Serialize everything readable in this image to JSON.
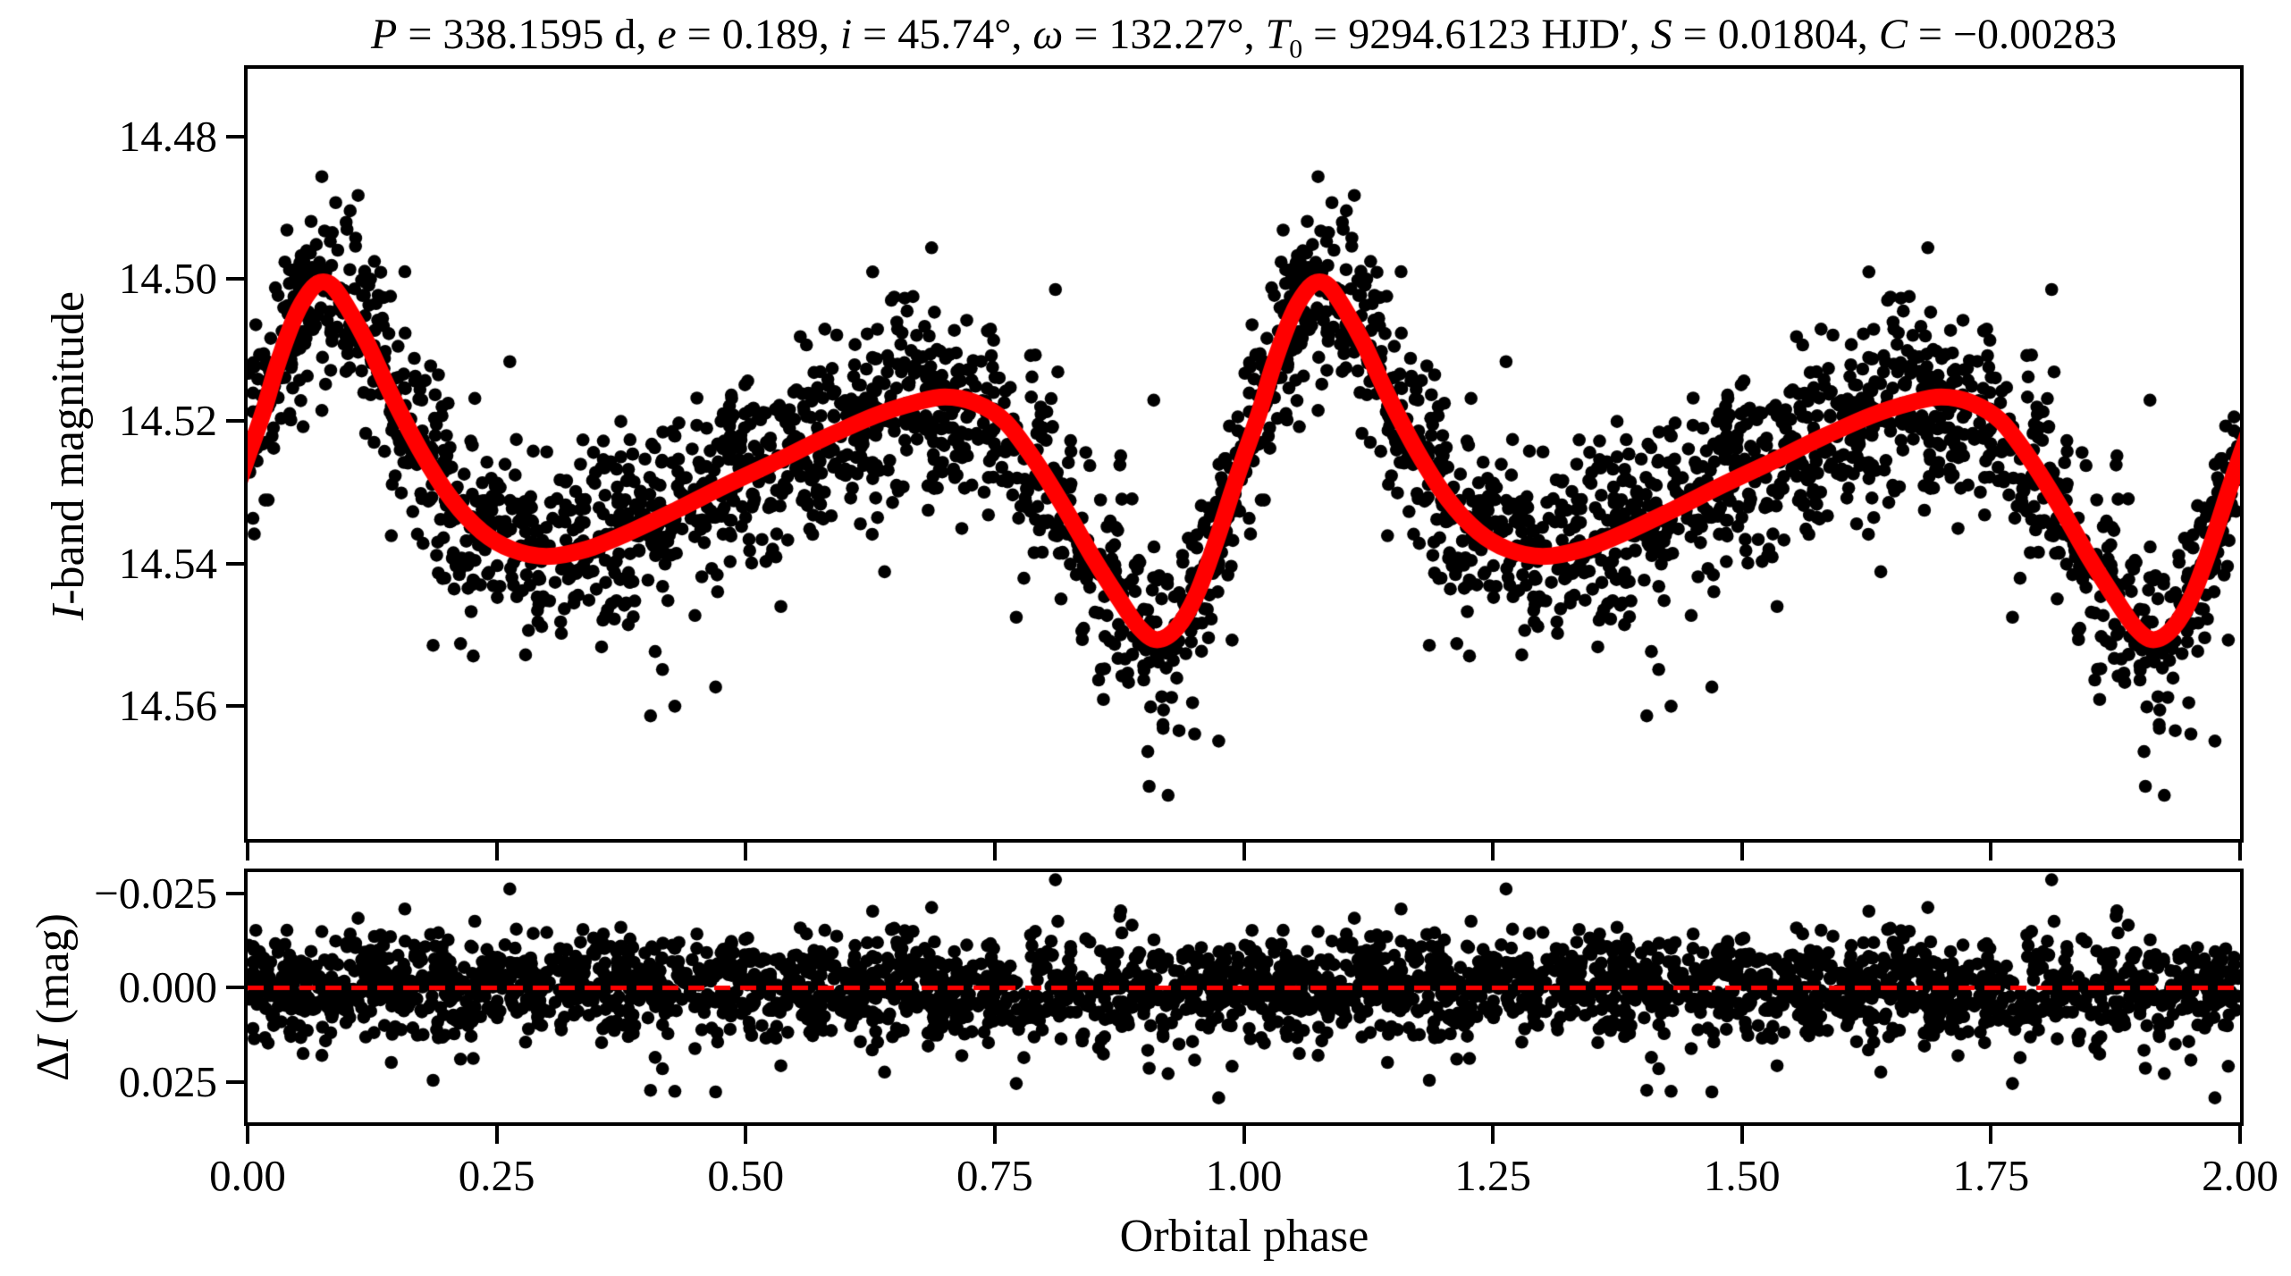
{
  "title": {
    "text": "P = 338.1595 d, e = 0.189, i = 45.74°, ω = 132.27°, T0 = 9294.6123 HJD′, S = 0.01804, C = −0.00283",
    "segments": [
      {
        "t": "P",
        "italic": true
      },
      {
        "t": " = 338.1595 d, "
      },
      {
        "t": "e",
        "italic": true
      },
      {
        "t": " = 0.189, "
      },
      {
        "t": "i",
        "italic": true
      },
      {
        "t": " = 45.74°, "
      },
      {
        "t": "ω",
        "italic": true
      },
      {
        "t": " = 132.27°, "
      },
      {
        "t": "T",
        "italic": true
      },
      {
        "t": "0",
        "sub": true
      },
      {
        "t": " = 9294.6123 HJD′, "
      },
      {
        "t": "S",
        "italic": true
      },
      {
        "t": " = 0.01804, "
      },
      {
        "t": "C",
        "italic": true
      },
      {
        "t": " = −0.00283"
      }
    ]
  },
  "chart_data": {
    "type": "scatter",
    "description": "Phase-folded I-band light curve of an eclipsing/ellipsoidal binary with fitted model (top) and fit residuals (bottom). Black dots are observations plotted over two phase cycles; thick red curve is the model; red dashed line marks zero residual.",
    "x_axis": {
      "label": "Orbital phase",
      "range": [
        0,
        2
      ],
      "ticks": [
        0,
        0.25,
        0.5,
        0.75,
        1.0,
        1.25,
        1.5,
        1.75,
        2.0
      ],
      "tick_labels": [
        "0.00",
        "0.25",
        "0.50",
        "0.75",
        "1.00",
        "1.25",
        "1.50",
        "1.75",
        "2.00"
      ]
    },
    "panels": [
      {
        "id": "light_curve",
        "y_axis": {
          "label": "I-band magnitude",
          "label_segments": [
            {
              "t": "I",
              "italic": true
            },
            {
              "t": "-band magnitude"
            }
          ],
          "range": [
            14.4705,
            14.5787
          ],
          "inverted_magnitude_axis": true,
          "ticks": [
            14.48,
            14.5,
            14.52,
            14.54,
            14.56
          ],
          "tick_labels": [
            "14.48",
            "14.50",
            "14.52",
            "14.54",
            "14.56"
          ]
        },
        "marker": {
          "color": "#000000",
          "radius": 7.3
        },
        "cycles": 2,
        "n_observations_per_cycle": 1500,
        "noise": {
          "sigma_core": 0.0065,
          "sigma_tail": 0.013,
          "tail_fraction": 0.08,
          "seed": 42
        },
        "model": {
          "color": "#ff0000",
          "line_width": 19,
          "cycle_phase": [
            0,
            0.015,
            0.03,
            0.048,
            0.062,
            0.073,
            0.085,
            0.1,
            0.12,
            0.145,
            0.175,
            0.205,
            0.235,
            0.265,
            0.3,
            0.34,
            0.38,
            0.43,
            0.48,
            0.53,
            0.58,
            0.63,
            0.67,
            0.7,
            0.73,
            0.76,
            0.79,
            0.82,
            0.85,
            0.875,
            0.895,
            0.913,
            0.933,
            0.953,
            0.973,
            0.988,
            1
          ],
          "cycle_mag": [
            14.525,
            14.519,
            14.512,
            14.5052,
            14.5018,
            14.5005,
            14.501,
            14.504,
            14.509,
            14.5165,
            14.5245,
            14.531,
            14.5355,
            14.538,
            14.539,
            14.538,
            14.5358,
            14.5325,
            14.529,
            14.5257,
            14.5223,
            14.5192,
            14.5174,
            14.5166,
            14.5174,
            14.52,
            14.5255,
            14.5322,
            14.5395,
            14.545,
            14.549,
            14.5507,
            14.549,
            14.5442,
            14.5365,
            14.53,
            14.525
          ],
          "features": {
            "primary_maximum": {
              "phase": 0.073,
              "mag": 14.5005
            },
            "broad_faint_plateau": {
              "phase": 0.3,
              "mag": 14.539
            },
            "secondary_hump": {
              "phase": 0.7,
              "mag": 14.5166
            },
            "eclipse_dip_minimum": {
              "phase": 0.913,
              "mag": 14.5507
            },
            "phase_zero_value": 14.525
          }
        }
      },
      {
        "id": "residuals",
        "y_axis": {
          "label": "ΔI (mag)",
          "label_segments": [
            {
              "t": "Δ"
            },
            {
              "t": "I",
              "italic": true
            },
            {
              "t": " (mag)"
            }
          ],
          "range": [
            -0.0307,
            0.0357
          ],
          "ticks": [
            -0.025,
            0.0,
            0.025
          ],
          "tick_labels": [
            "−0.025",
            "0.000",
            "0.025"
          ]
        },
        "marker": {
          "color": "#000000",
          "radius": 7.3
        },
        "zero_line": {
          "value": 0.0,
          "color": "#ff0000",
          "line_width": 5,
          "dash": [
            18,
            11
          ]
        }
      }
    ]
  }
}
